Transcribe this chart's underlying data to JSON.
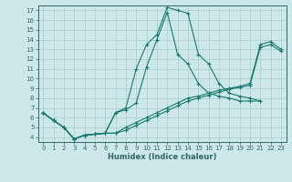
{
  "xlabel": "Humidex (Indice chaleur)",
  "xlim": [
    -0.5,
    23.5
  ],
  "ylim": [
    3.5,
    17.5
  ],
  "xticks": [
    0,
    1,
    2,
    3,
    4,
    5,
    6,
    7,
    8,
    9,
    10,
    11,
    12,
    13,
    14,
    15,
    16,
    17,
    18,
    19,
    20,
    21,
    22,
    23
  ],
  "yticks": [
    4,
    5,
    6,
    7,
    8,
    9,
    10,
    11,
    12,
    13,
    14,
    15,
    16,
    17
  ],
  "background_color": "#cce8e8",
  "grid_color": "#aacccc",
  "line_color": "#1a7a6e",
  "lines": [
    {
      "x": [
        0,
        1,
        2,
        3,
        4,
        5,
        6,
        7,
        8,
        9,
        10,
        11,
        12,
        13,
        14,
        15,
        16,
        17,
        18,
        19,
        20,
        21
      ],
      "y": [
        6.5,
        5.7,
        5.0,
        3.8,
        4.2,
        4.3,
        4.4,
        6.5,
        7.0,
        11.0,
        13.5,
        14.5,
        17.3,
        17.0,
        16.7,
        12.5,
        11.5,
        9.5,
        8.5,
        8.2,
        8.0,
        7.7
      ]
    },
    {
      "x": [
        0,
        1,
        2,
        3,
        4,
        5,
        6,
        7,
        8,
        9,
        10,
        11,
        12,
        13,
        14,
        15,
        16,
        17,
        18,
        19,
        20,
        21
      ],
      "y": [
        6.5,
        5.7,
        5.0,
        3.8,
        4.2,
        4.3,
        4.4,
        6.5,
        6.8,
        7.5,
        11.2,
        14.0,
        16.8,
        12.5,
        11.5,
        9.5,
        8.5,
        8.2,
        8.0,
        7.7,
        7.7,
        7.7
      ]
    },
    {
      "x": [
        0,
        1,
        2,
        3,
        4,
        5,
        6,
        7,
        8,
        9,
        10,
        11,
        12,
        13,
        14,
        15,
        16,
        17,
        18,
        19,
        20,
        21,
        22,
        23
      ],
      "y": [
        6.5,
        5.7,
        5.0,
        3.8,
        4.2,
        4.3,
        4.4,
        4.4,
        5.0,
        5.5,
        6.0,
        6.5,
        7.0,
        7.5,
        8.0,
        8.2,
        8.5,
        8.8,
        9.0,
        9.2,
        9.5,
        13.5,
        13.8,
        13.0
      ]
    },
    {
      "x": [
        0,
        1,
        2,
        3,
        4,
        5,
        6,
        7,
        8,
        9,
        10,
        11,
        12,
        13,
        14,
        15,
        16,
        17,
        18,
        19,
        20,
        21,
        22,
        23
      ],
      "y": [
        6.5,
        5.7,
        5.0,
        3.8,
        4.2,
        4.3,
        4.4,
        4.4,
        4.7,
        5.2,
        5.7,
        6.2,
        6.7,
        7.2,
        7.7,
        8.0,
        8.3,
        8.6,
        8.9,
        9.1,
        9.3,
        13.2,
        13.5,
        12.8
      ]
    }
  ]
}
